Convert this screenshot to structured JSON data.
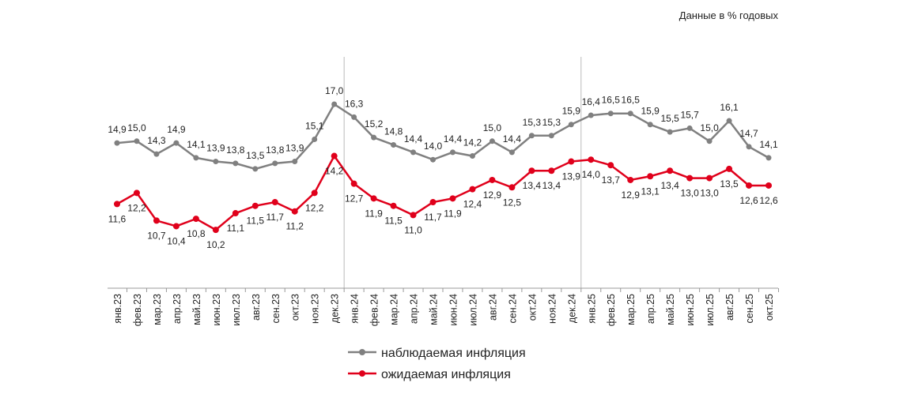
{
  "chart_data": {
    "type": "line",
    "note_label": "Данные в % годовых",
    "categories": [
      "янв.23",
      "фев.23",
      "мар.23",
      "апр.23",
      "май.23",
      "июн.23",
      "июл.23",
      "авг.23",
      "сен.23",
      "окт.23",
      "ноя.23",
      "дек.23",
      "янв.24",
      "фев.24",
      "мар.24",
      "апр.24",
      "май.24",
      "июн.24",
      "июл.24",
      "авг.24",
      "сен.24",
      "окт.24",
      "ноя.24",
      "дек.24",
      "янв.25",
      "фев.25",
      "мар.25",
      "апр.25",
      "май.25",
      "июн.25",
      "июл.25",
      "авг.25",
      "сен.25",
      "окт.25"
    ],
    "series": [
      {
        "name": "наблюдаемая инфляция",
        "color": "#808080",
        "values": [
          14.9,
          15.0,
          14.3,
          14.9,
          14.1,
          13.9,
          13.8,
          13.5,
          13.8,
          13.9,
          15.1,
          17.0,
          16.3,
          15.2,
          14.8,
          14.4,
          14.0,
          14.4,
          14.2,
          15.0,
          14.4,
          15.3,
          15.3,
          15.9,
          16.4,
          16.5,
          16.5,
          15.9,
          15.5,
          15.7,
          15.0,
          16.1,
          14.7,
          14.1
        ]
      },
      {
        "name": "ожидаемая инфляция",
        "color": "#e0001b",
        "values": [
          11.6,
          12.2,
          10.7,
          10.4,
          10.8,
          10.2,
          11.1,
          11.5,
          11.7,
          11.2,
          12.2,
          14.2,
          12.7,
          11.9,
          11.5,
          11.0,
          11.7,
          11.9,
          12.4,
          12.9,
          12.5,
          13.4,
          13.4,
          13.9,
          14.0,
          13.7,
          12.9,
          13.1,
          13.4,
          13.0,
          13.0,
          13.5,
          12.6,
          12.6
        ]
      }
    ],
    "year_separators_after": [
      "дек.23",
      "дек.24"
    ],
    "ylim": [
      7,
      19
    ],
    "grid": false,
    "legend_position": "bottom",
    "xlabel": "",
    "ylabel": ""
  }
}
